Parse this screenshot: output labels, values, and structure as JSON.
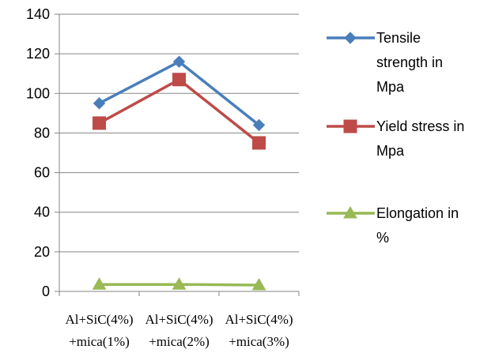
{
  "chart_data": {
    "type": "line",
    "categories": [
      [
        "Al+SiC(4%)",
        "+mica(1%)"
      ],
      [
        "Al+SiC(4%)",
        "+mica(2%)"
      ],
      [
        "Al+SiC(4%)",
        "+mica(3%)"
      ]
    ],
    "ylim": [
      0,
      140
    ],
    "yticks": [
      0,
      20,
      40,
      60,
      80,
      100,
      120,
      140
    ],
    "grid": true,
    "legend_position": "right",
    "series": [
      {
        "name_lines": [
          "Tensile",
          "strength in",
          "Mpa"
        ],
        "values": [
          95,
          116,
          84
        ],
        "color": "#4A7EBB",
        "marker": "diamond"
      },
      {
        "name_lines": [
          "Yield stress in",
          "Mpa"
        ],
        "values": [
          85,
          107,
          75
        ],
        "color": "#BE4B48",
        "marker": "square"
      },
      {
        "name_lines": [
          "Elongation in",
          "%"
        ],
        "values": [
          3.5,
          3.5,
          3.2
        ],
        "color": "#98B954",
        "marker": "triangle"
      }
    ]
  }
}
